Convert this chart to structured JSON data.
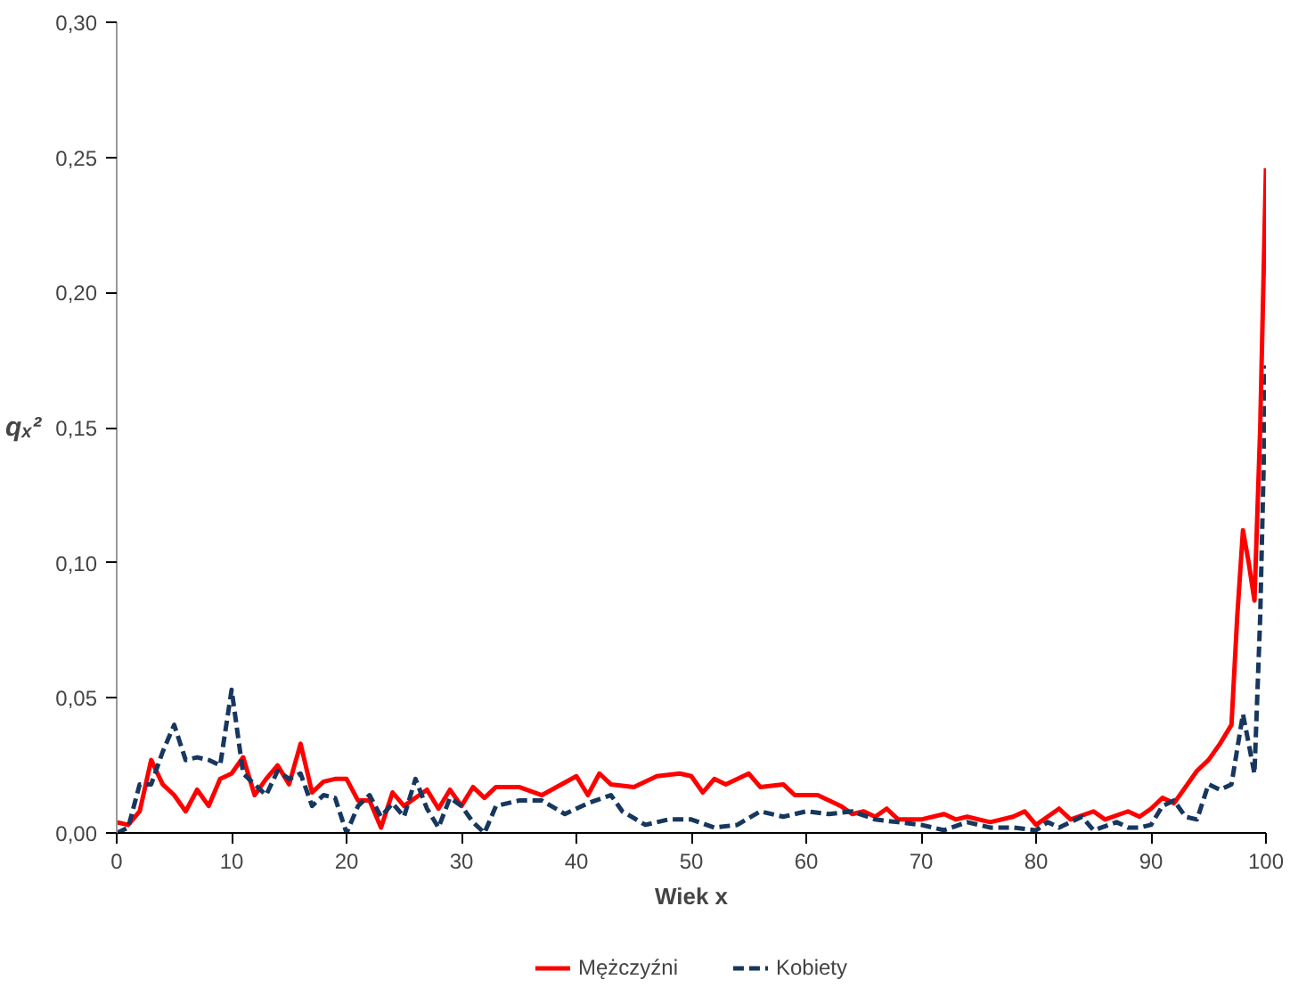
{
  "chart_data": {
    "type": "line",
    "xlabel": "Wiek x",
    "ylabel": "qₓ²",
    "xlim": [
      0,
      100
    ],
    "xticks": [
      0,
      10,
      20,
      30,
      40,
      50,
      60,
      70,
      80,
      90,
      100
    ],
    "ylim": [
      0,
      0.3
    ],
    "yticks": [
      {
        "value": 0,
        "label": "0,00"
      },
      {
        "value": 0.05,
        "label": "0,05"
      },
      {
        "value": 0.1,
        "label": "0,10"
      },
      {
        "value": 0.15,
        "label": "0,15"
      },
      {
        "value": 0.2,
        "label": "0,20"
      },
      {
        "value": 0.25,
        "label": "0,25"
      },
      {
        "value": 0.3,
        "label": "0,30"
      }
    ],
    "grid": false,
    "legend": "bottom",
    "series": [
      {
        "name": "Mężczyźni",
        "color": "#ff0000",
        "line_style": "solid",
        "x": [
          0,
          1,
          2,
          3,
          4,
          5,
          6,
          7,
          8,
          9,
          10,
          11,
          12,
          13,
          14,
          15,
          16,
          17,
          18,
          19,
          20,
          21,
          22,
          23,
          24,
          25,
          26,
          27,
          28,
          29,
          30,
          31,
          32,
          33,
          35,
          37,
          40,
          41,
          42,
          43,
          45,
          47,
          49,
          50,
          51,
          52,
          53,
          55,
          56,
          58,
          59,
          61,
          63,
          64,
          65,
          66,
          67,
          68,
          70,
          72,
          73,
          74,
          76,
          78,
          79,
          80,
          81,
          82,
          83,
          85,
          86,
          88,
          89,
          90,
          91,
          92,
          93,
          94,
          95,
          96,
          97,
          97.5,
          98,
          98.5,
          99,
          99.5,
          100
        ],
        "values": [
          0.004,
          0.003,
          0.008,
          0.027,
          0.018,
          0.014,
          0.008,
          0.016,
          0.01,
          0.02,
          0.022,
          0.028,
          0.014,
          0.02,
          0.025,
          0.018,
          0.033,
          0.015,
          0.019,
          0.02,
          0.02,
          0.012,
          0.012,
          0.002,
          0.015,
          0.01,
          0.013,
          0.016,
          0.009,
          0.016,
          0.01,
          0.017,
          0.013,
          0.017,
          0.017,
          0.014,
          0.021,
          0.014,
          0.022,
          0.018,
          0.017,
          0.021,
          0.022,
          0.021,
          0.015,
          0.02,
          0.018,
          0.022,
          0.017,
          0.018,
          0.014,
          0.014,
          0.01,
          0.007,
          0.008,
          0.006,
          0.009,
          0.005,
          0.005,
          0.007,
          0.005,
          0.006,
          0.004,
          0.006,
          0.008,
          0.003,
          0.006,
          0.009,
          0.005,
          0.008,
          0.005,
          0.008,
          0.006,
          0.009,
          0.013,
          0.011,
          0.017,
          0.023,
          0.027,
          0.033,
          0.04,
          0.08,
          0.112,
          0.1,
          0.086,
          0.15,
          0.246
        ]
      },
      {
        "name": "Kobiety",
        "color": "#17375e",
        "line_style": "dashed",
        "x": [
          0,
          1,
          2,
          3,
          4,
          5,
          6,
          7,
          8,
          9,
          10,
          11,
          12,
          13,
          14,
          15,
          16,
          17,
          18,
          19,
          20,
          21,
          22,
          23,
          24,
          25,
          26,
          27,
          28,
          29,
          30,
          31,
          32,
          33,
          35,
          37,
          39,
          41,
          43,
          44,
          46,
          48,
          50,
          52,
          54,
          56,
          58,
          60,
          62,
          64,
          66,
          68,
          70,
          72,
          74,
          76,
          78,
          80,
          81,
          82,
          84,
          85,
          87,
          88,
          89,
          90,
          91,
          92,
          93,
          94,
          95,
          96,
          97,
          98,
          99,
          99.5,
          100
        ],
        "values": [
          0.0,
          0.002,
          0.018,
          0.018,
          0.03,
          0.04,
          0.027,
          0.028,
          0.027,
          0.025,
          0.053,
          0.022,
          0.018,
          0.014,
          0.023,
          0.02,
          0.022,
          0.01,
          0.014,
          0.013,
          0.0,
          0.01,
          0.014,
          0.006,
          0.011,
          0.006,
          0.02,
          0.009,
          0.002,
          0.013,
          0.01,
          0.004,
          0.0,
          0.01,
          0.012,
          0.012,
          0.007,
          0.011,
          0.014,
          0.008,
          0.003,
          0.005,
          0.005,
          0.002,
          0.003,
          0.008,
          0.006,
          0.008,
          0.007,
          0.008,
          0.005,
          0.004,
          0.003,
          0.001,
          0.004,
          0.002,
          0.002,
          0.001,
          0.004,
          0.002,
          0.006,
          0.001,
          0.004,
          0.002,
          0.002,
          0.003,
          0.01,
          0.012,
          0.006,
          0.005,
          0.018,
          0.016,
          0.018,
          0.044,
          0.022,
          0.08,
          0.173
        ]
      }
    ]
  }
}
